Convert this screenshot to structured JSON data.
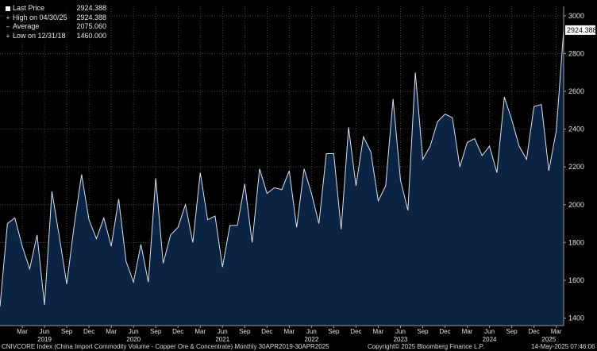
{
  "legend": {
    "last_price_label": "Last Price",
    "last_price_value": "2924.388",
    "high_label": "High on 04/30/25",
    "high_value": "2924.388",
    "average_label": "Average",
    "average_value": "2075.060",
    "low_label": "Low on 12/31/18",
    "low_value": "1460.000"
  },
  "footer": {
    "security": "CNIVCORE Index (China Import Commodity Volume - Copper Ore & Concentrate)  Monthly 30APR2019-30APR2025",
    "copyright": "Copyright© 2025 Bloomberg Finance L.P.",
    "timestamp": "14-May-2025 07:46:06"
  },
  "colors": {
    "background": "#000000",
    "area_fill": "#0c2444",
    "line": "#d9e2ee",
    "last_price_tag": "#ffffff",
    "grid": "#6a6a6a"
  },
  "chart_data": {
    "type": "area",
    "x_start": "2018-12",
    "x_end": "2025-04",
    "y_label_side": "right",
    "ylim": [
      1360,
      3050
    ],
    "y_ticks": [
      1400,
      1600,
      1800,
      2000,
      2200,
      2400,
      2600,
      2800,
      3000
    ],
    "grid": true,
    "last_value_tag": "2924.388",
    "month_ticks": [
      {
        "month": "2019-03",
        "label": "Mar"
      },
      {
        "month": "2019-06",
        "label": "Jun"
      },
      {
        "month": "2019-09",
        "label": "Sep"
      },
      {
        "month": "2019-12",
        "label": "Dec"
      },
      {
        "month": "2020-03",
        "label": "Mar"
      },
      {
        "month": "2020-06",
        "label": "Jun"
      },
      {
        "month": "2020-09",
        "label": "Sep"
      },
      {
        "month": "2020-12",
        "label": "Dec"
      },
      {
        "month": "2021-03",
        "label": "Mar"
      },
      {
        "month": "2021-06",
        "label": "Jun"
      },
      {
        "month": "2021-09",
        "label": "Sep"
      },
      {
        "month": "2021-12",
        "label": "Dec"
      },
      {
        "month": "2022-03",
        "label": "Mar"
      },
      {
        "month": "2022-06",
        "label": "Jun"
      },
      {
        "month": "2022-09",
        "label": "Sep"
      },
      {
        "month": "2022-12",
        "label": "Dec"
      },
      {
        "month": "2023-03",
        "label": "Mar"
      },
      {
        "month": "2023-06",
        "label": "Jun"
      },
      {
        "month": "2023-09",
        "label": "Sep"
      },
      {
        "month": "2023-12",
        "label": "Dec"
      },
      {
        "month": "2024-03",
        "label": "Mar"
      },
      {
        "month": "2024-06",
        "label": "Jun"
      },
      {
        "month": "2024-09",
        "label": "Sep"
      },
      {
        "month": "2024-12",
        "label": "Dec"
      },
      {
        "month": "2025-03",
        "label": "Mar"
      }
    ],
    "year_ticks": [
      {
        "month": "2019-06",
        "label": "2019"
      },
      {
        "month": "2020-06",
        "label": "2020"
      },
      {
        "month": "2021-06",
        "label": "2021"
      },
      {
        "month": "2022-06",
        "label": "2022"
      },
      {
        "month": "2023-06",
        "label": "2023"
      },
      {
        "month": "2024-06",
        "label": "2024"
      },
      {
        "month": "2025-02",
        "label": "2025"
      }
    ],
    "series": [
      {
        "name": "Last Price",
        "values": [
          {
            "x": "2018-12",
            "y": 1460
          },
          {
            "x": "2019-01",
            "y": 1900
          },
          {
            "x": "2019-02",
            "y": 1930
          },
          {
            "x": "2019-03",
            "y": 1780
          },
          {
            "x": "2019-04",
            "y": 1660
          },
          {
            "x": "2019-05",
            "y": 1840
          },
          {
            "x": "2019-06",
            "y": 1470
          },
          {
            "x": "2019-07",
            "y": 2070
          },
          {
            "x": "2019-08",
            "y": 1830
          },
          {
            "x": "2019-09",
            "y": 1580
          },
          {
            "x": "2019-10",
            "y": 1890
          },
          {
            "x": "2019-11",
            "y": 2160
          },
          {
            "x": "2019-12",
            "y": 1920
          },
          {
            "x": "2020-01",
            "y": 1820
          },
          {
            "x": "2020-02",
            "y": 1930
          },
          {
            "x": "2020-03",
            "y": 1780
          },
          {
            "x": "2020-04",
            "y": 2030
          },
          {
            "x": "2020-05",
            "y": 1700
          },
          {
            "x": "2020-06",
            "y": 1590
          },
          {
            "x": "2020-07",
            "y": 1790
          },
          {
            "x": "2020-08",
            "y": 1590
          },
          {
            "x": "2020-09",
            "y": 2140
          },
          {
            "x": "2020-10",
            "y": 1690
          },
          {
            "x": "2020-11",
            "y": 1840
          },
          {
            "x": "2020-12",
            "y": 1880
          },
          {
            "x": "2021-01",
            "y": 2000
          },
          {
            "x": "2021-02",
            "y": 1800
          },
          {
            "x": "2021-03",
            "y": 2170
          },
          {
            "x": "2021-04",
            "y": 1920
          },
          {
            "x": "2021-05",
            "y": 1940
          },
          {
            "x": "2021-06",
            "y": 1670
          },
          {
            "x": "2021-07",
            "y": 1890
          },
          {
            "x": "2021-08",
            "y": 1890
          },
          {
            "x": "2021-09",
            "y": 2110
          },
          {
            "x": "2021-10",
            "y": 1800
          },
          {
            "x": "2021-11",
            "y": 2190
          },
          {
            "x": "2021-12",
            "y": 2060
          },
          {
            "x": "2022-01",
            "y": 2090
          },
          {
            "x": "2022-02",
            "y": 2080
          },
          {
            "x": "2022-03",
            "y": 2180
          },
          {
            "x": "2022-04",
            "y": 1880
          },
          {
            "x": "2022-05",
            "y": 2190
          },
          {
            "x": "2022-06",
            "y": 2060
          },
          {
            "x": "2022-07",
            "y": 1900
          },
          {
            "x": "2022-08",
            "y": 2270
          },
          {
            "x": "2022-09",
            "y": 2270
          },
          {
            "x": "2022-10",
            "y": 1870
          },
          {
            "x": "2022-11",
            "y": 2410
          },
          {
            "x": "2022-12",
            "y": 2100
          },
          {
            "x": "2023-01",
            "y": 2360
          },
          {
            "x": "2023-02",
            "y": 2280
          },
          {
            "x": "2023-03",
            "y": 2020
          },
          {
            "x": "2023-04",
            "y": 2100
          },
          {
            "x": "2023-05",
            "y": 2560
          },
          {
            "x": "2023-06",
            "y": 2130
          },
          {
            "x": "2023-07",
            "y": 1970
          },
          {
            "x": "2023-08",
            "y": 2700
          },
          {
            "x": "2023-09",
            "y": 2240
          },
          {
            "x": "2023-10",
            "y": 2310
          },
          {
            "x": "2023-11",
            "y": 2440
          },
          {
            "x": "2023-12",
            "y": 2480
          },
          {
            "x": "2024-01",
            "y": 2460
          },
          {
            "x": "2024-02",
            "y": 2200
          },
          {
            "x": "2024-03",
            "y": 2330
          },
          {
            "x": "2024-04",
            "y": 2350
          },
          {
            "x": "2024-05",
            "y": 2260
          },
          {
            "x": "2024-06",
            "y": 2310
          },
          {
            "x": "2024-07",
            "y": 2170
          },
          {
            "x": "2024-08",
            "y": 2570
          },
          {
            "x": "2024-09",
            "y": 2450
          },
          {
            "x": "2024-10",
            "y": 2310
          },
          {
            "x": "2024-11",
            "y": 2240
          },
          {
            "x": "2024-12",
            "y": 2520
          },
          {
            "x": "2025-01",
            "y": 2530
          },
          {
            "x": "2025-02",
            "y": 2180
          },
          {
            "x": "2025-03",
            "y": 2390
          },
          {
            "x": "2025-04",
            "y": 2924.388
          }
        ]
      }
    ]
  }
}
